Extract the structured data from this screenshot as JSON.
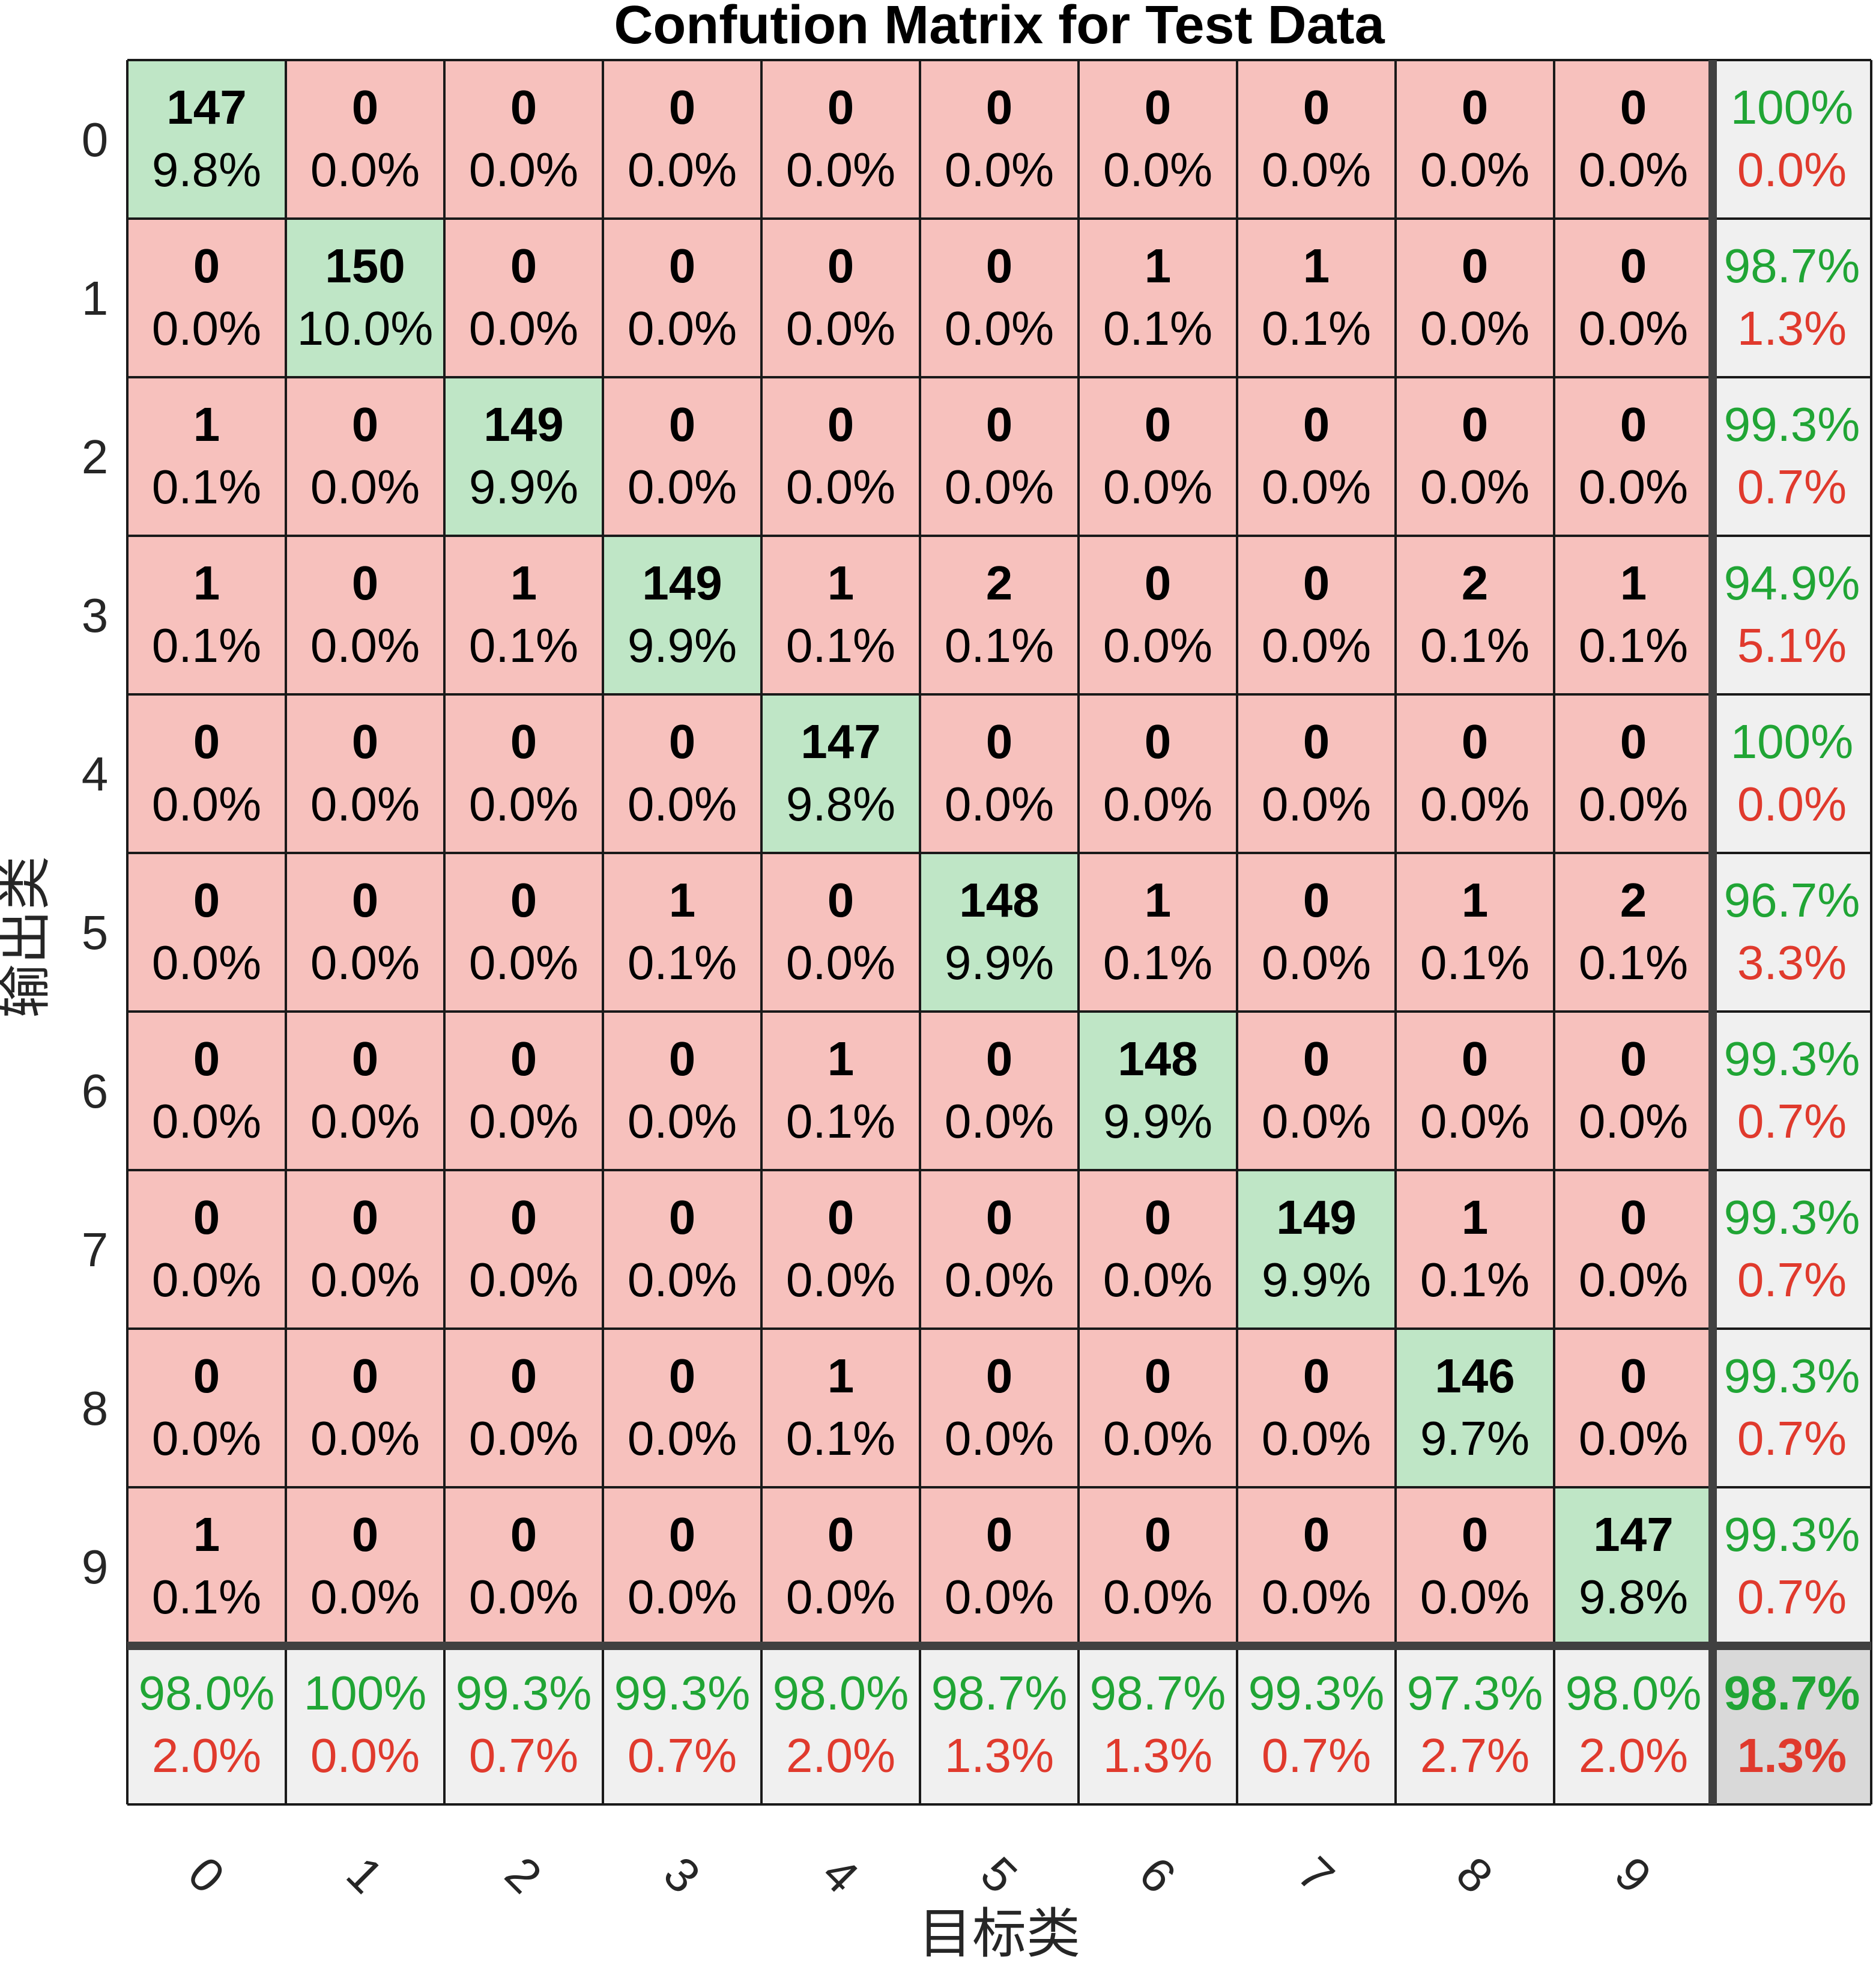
{
  "chart_data": {
    "type": "heatmap",
    "title": "Confution Matrix for Test Data",
    "xlabel": "目标类",
    "ylabel": "输出类",
    "classes": [
      "0",
      "1",
      "2",
      "3",
      "4",
      "5",
      "6",
      "7",
      "8",
      "9"
    ],
    "matrix": [
      [
        147,
        0,
        0,
        0,
        0,
        0,
        0,
        0,
        0,
        0
      ],
      [
        0,
        150,
        0,
        0,
        0,
        0,
        1,
        1,
        0,
        0
      ],
      [
        1,
        0,
        149,
        0,
        0,
        0,
        0,
        0,
        0,
        0
      ],
      [
        1,
        0,
        1,
        149,
        1,
        2,
        0,
        0,
        2,
        1
      ],
      [
        0,
        0,
        0,
        0,
        147,
        0,
        0,
        0,
        0,
        0
      ],
      [
        0,
        0,
        0,
        1,
        0,
        148,
        1,
        0,
        1,
        2
      ],
      [
        0,
        0,
        0,
        0,
        1,
        0,
        148,
        0,
        0,
        0
      ],
      [
        0,
        0,
        0,
        0,
        0,
        0,
        0,
        149,
        1,
        0
      ],
      [
        0,
        0,
        0,
        0,
        1,
        0,
        0,
        0,
        146,
        0
      ],
      [
        1,
        0,
        0,
        0,
        0,
        0,
        0,
        0,
        0,
        147
      ]
    ],
    "matrix_percent": [
      [
        "9.8%",
        "0.0%",
        "0.0%",
        "0.0%",
        "0.0%",
        "0.0%",
        "0.0%",
        "0.0%",
        "0.0%",
        "0.0%"
      ],
      [
        "0.0%",
        "10.0%",
        "0.0%",
        "0.0%",
        "0.0%",
        "0.0%",
        "0.1%",
        "0.1%",
        "0.0%",
        "0.0%"
      ],
      [
        "0.1%",
        "0.0%",
        "9.9%",
        "0.0%",
        "0.0%",
        "0.0%",
        "0.0%",
        "0.0%",
        "0.0%",
        "0.0%"
      ],
      [
        "0.1%",
        "0.0%",
        "0.1%",
        "9.9%",
        "0.1%",
        "0.1%",
        "0.0%",
        "0.0%",
        "0.1%",
        "0.1%"
      ],
      [
        "0.0%",
        "0.0%",
        "0.0%",
        "0.0%",
        "9.8%",
        "0.0%",
        "0.0%",
        "0.0%",
        "0.0%",
        "0.0%"
      ],
      [
        "0.0%",
        "0.0%",
        "0.0%",
        "0.1%",
        "0.0%",
        "9.9%",
        "0.1%",
        "0.0%",
        "0.1%",
        "0.1%"
      ],
      [
        "0.0%",
        "0.0%",
        "0.0%",
        "0.0%",
        "0.1%",
        "0.0%",
        "9.9%",
        "0.0%",
        "0.0%",
        "0.0%"
      ],
      [
        "0.0%",
        "0.0%",
        "0.0%",
        "0.0%",
        "0.0%",
        "0.0%",
        "0.0%",
        "9.9%",
        "0.1%",
        "0.0%"
      ],
      [
        "0.0%",
        "0.0%",
        "0.0%",
        "0.0%",
        "0.1%",
        "0.0%",
        "0.0%",
        "0.0%",
        "9.7%",
        "0.0%"
      ],
      [
        "0.1%",
        "0.0%",
        "0.0%",
        "0.0%",
        "0.0%",
        "0.0%",
        "0.0%",
        "0.0%",
        "0.0%",
        "9.8%"
      ]
    ],
    "row_summary": [
      [
        "100%",
        "0.0%"
      ],
      [
        "98.7%",
        "1.3%"
      ],
      [
        "99.3%",
        "0.7%"
      ],
      [
        "94.9%",
        "5.1%"
      ],
      [
        "100%",
        "0.0%"
      ],
      [
        "96.7%",
        "3.3%"
      ],
      [
        "99.3%",
        "0.7%"
      ],
      [
        "99.3%",
        "0.7%"
      ],
      [
        "99.3%",
        "0.7%"
      ],
      [
        "99.3%",
        "0.7%"
      ]
    ],
    "column_summary": [
      [
        "98.0%",
        "2.0%"
      ],
      [
        "100%",
        "0.0%"
      ],
      [
        "99.3%",
        "0.7%"
      ],
      [
        "99.3%",
        "0.7%"
      ],
      [
        "98.0%",
        "2.0%"
      ],
      [
        "98.7%",
        "1.3%"
      ],
      [
        "98.7%",
        "1.3%"
      ],
      [
        "99.3%",
        "0.7%"
      ],
      [
        "97.3%",
        "2.7%"
      ],
      [
        "98.0%",
        "2.0%"
      ]
    ],
    "overall": [
      "98.7%",
      "1.3%"
    ],
    "colors": {
      "diagonal": "#bfe6c6",
      "off_diagonal": "#f7c1bd",
      "summary": "#f0f0f0",
      "overall": "#d9d9d9",
      "good_text": "#20a535",
      "bad_text": "#e03a2d"
    }
  }
}
